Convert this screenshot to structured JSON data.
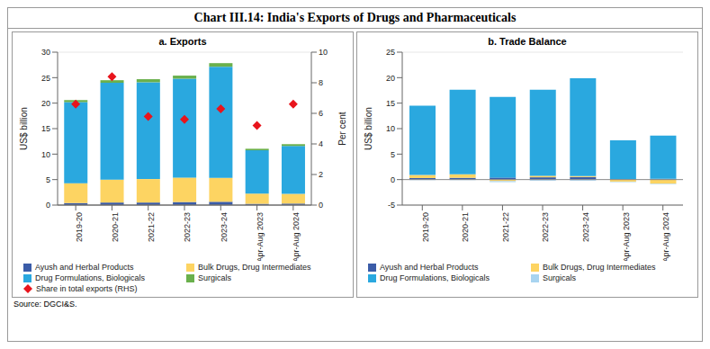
{
  "title": "Chart III.14: India's Exports of Drugs and Pharmaceuticals",
  "source": "Source: DGCI&S.",
  "chart_data": [
    {
      "type": "bar",
      "title": "a. Exports",
      "stacked": true,
      "y_label": "US$ billion",
      "y2_label": "Per cent",
      "categories": [
        "2019-20",
        "2020-21",
        "2021-22",
        "2022-23",
        "2023-24",
        "Apr-Aug 2023",
        "Apr-Aug 2024"
      ],
      "ylim": [
        0,
        30
      ],
      "yticks": [
        0,
        5,
        10,
        15,
        20,
        25,
        30
      ],
      "y2lim": [
        0,
        10
      ],
      "y2ticks": [
        0,
        2,
        4,
        6,
        8,
        10
      ],
      "series": [
        {
          "name": "Ayush and Herbal Products",
          "color": "#3b5ca8",
          "values": [
            0.4,
            0.5,
            0.5,
            0.6,
            0.65,
            0.25,
            0.3
          ]
        },
        {
          "name": "Bulk Drugs, Drug Intermediates",
          "color": "#fdd462",
          "values": [
            3.9,
            4.5,
            4.6,
            4.8,
            4.7,
            2.0,
            1.9
          ]
        },
        {
          "name": "Drug Formulations, Biologicals",
          "color": "#2aa8df",
          "values": [
            15.9,
            19.0,
            19.0,
            19.4,
            21.8,
            8.5,
            9.4
          ]
        },
        {
          "name": "Surgicals",
          "color": "#6ab04c",
          "values": [
            0.4,
            0.5,
            0.6,
            0.6,
            0.7,
            0.3,
            0.35
          ]
        },
        {
          "name": "Share in total exports (RHS)",
          "color": "#e8141c",
          "type": "scatter",
          "marker": "diamond",
          "axis": "y2",
          "values": [
            6.6,
            8.4,
            5.8,
            5.6,
            6.3,
            5.2,
            6.6
          ]
        }
      ]
    },
    {
      "type": "bar",
      "title": "b. Trade Balance",
      "stacked": true,
      "y_label": "US$ billion",
      "categories": [
        "2019-20",
        "2020-21",
        "2021-22",
        "2022-23",
        "2023-24",
        "Apr-Aug 2023",
        "Apr-Aug 2024"
      ],
      "ylim": [
        -5,
        25
      ],
      "yticks": [
        -5,
        0,
        5,
        10,
        15,
        20,
        25
      ],
      "series": [
        {
          "name": "Ayush and Herbal Products",
          "color": "#3b5ca8",
          "values": [
            0.3,
            0.35,
            0.4,
            0.45,
            0.5,
            0.1,
            0.15
          ]
        },
        {
          "name": "Bulk Drugs, Drug Intermediates",
          "color": "#fdd462",
          "values": [
            0.6,
            0.7,
            -0.3,
            0.3,
            0.2,
            -0.4,
            -0.8
          ]
        },
        {
          "name": "Drug Formulations, Biologicals",
          "color": "#2aa8df",
          "values": [
            13.6,
            16.6,
            15.8,
            16.9,
            19.2,
            7.6,
            8.5
          ]
        },
        {
          "name": "Surgicals",
          "color": "#a8d4f0",
          "values": [
            -0.1,
            -0.1,
            -0.2,
            -0.2,
            -0.2,
            -0.1,
            -0.1
          ]
        }
      ]
    }
  ]
}
